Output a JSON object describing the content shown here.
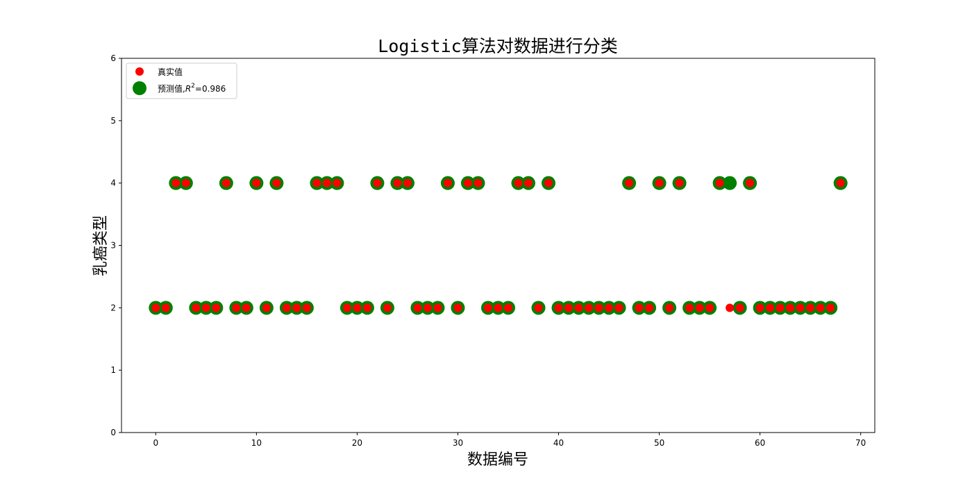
{
  "chart_data": {
    "type": "scatter",
    "title": "Logistic算法对数据进行分类",
    "xlabel": "数据编号",
    "ylabel": "乳癌类型",
    "xlim": [
      -3.4,
      71.4
    ],
    "ylim": [
      0,
      6
    ],
    "xticks": [
      0,
      10,
      20,
      30,
      40,
      50,
      60,
      70
    ],
    "yticks": [
      0,
      1,
      2,
      3,
      4,
      5,
      6
    ],
    "grid": false,
    "legend_position": "top-left",
    "colors": {
      "true": "#ff0000",
      "predicted": "#008000"
    },
    "legend": {
      "true_label": "真实值",
      "pred_label_prefix": "预测值,",
      "pred_r": "R",
      "pred_sup": "2",
      "pred_suffix": "=0.986"
    },
    "series": [
      {
        "name": "真实值",
        "x": [
          0,
          1,
          2,
          3,
          4,
          5,
          6,
          7,
          8,
          9,
          10,
          11,
          12,
          13,
          14,
          15,
          16,
          17,
          18,
          19,
          20,
          21,
          22,
          23,
          24,
          25,
          26,
          27,
          28,
          29,
          30,
          31,
          32,
          33,
          34,
          35,
          36,
          37,
          38,
          39,
          40,
          41,
          42,
          43,
          44,
          45,
          46,
          47,
          48,
          49,
          50,
          51,
          52,
          53,
          54,
          55,
          56,
          57,
          58,
          59,
          60,
          61,
          62,
          63,
          64,
          65,
          66,
          67,
          68
        ],
        "y": [
          2,
          2,
          4,
          4,
          2,
          2,
          2,
          4,
          2,
          2,
          4,
          2,
          4,
          2,
          2,
          2,
          4,
          4,
          4,
          2,
          2,
          2,
          4,
          2,
          4,
          4,
          2,
          2,
          2,
          4,
          2,
          4,
          4,
          2,
          2,
          2,
          4,
          4,
          2,
          4,
          2,
          2,
          2,
          2,
          2,
          2,
          2,
          4,
          2,
          2,
          4,
          2,
          4,
          2,
          2,
          2,
          4,
          2,
          2,
          4,
          2,
          2,
          2,
          2,
          2,
          2,
          2,
          2,
          4
        ]
      },
      {
        "name": "预测值",
        "x": [
          0,
          1,
          2,
          3,
          4,
          5,
          6,
          7,
          8,
          9,
          10,
          11,
          12,
          13,
          14,
          15,
          16,
          17,
          18,
          19,
          20,
          21,
          22,
          23,
          24,
          25,
          26,
          27,
          28,
          29,
          30,
          31,
          32,
          33,
          34,
          35,
          36,
          37,
          38,
          39,
          40,
          41,
          42,
          43,
          44,
          45,
          46,
          47,
          48,
          49,
          50,
          51,
          52,
          53,
          54,
          55,
          56,
          57,
          58,
          59,
          60,
          61,
          62,
          63,
          64,
          65,
          66,
          67,
          68
        ],
        "y": [
          2,
          2,
          4,
          4,
          2,
          2,
          2,
          4,
          2,
          2,
          4,
          2,
          4,
          2,
          2,
          2,
          4,
          4,
          4,
          2,
          2,
          2,
          4,
          2,
          4,
          4,
          2,
          2,
          2,
          4,
          2,
          4,
          4,
          2,
          2,
          2,
          4,
          4,
          2,
          4,
          2,
          2,
          2,
          2,
          2,
          2,
          2,
          4,
          2,
          2,
          4,
          2,
          4,
          2,
          2,
          2,
          4,
          4,
          2,
          4,
          2,
          2,
          2,
          2,
          2,
          2,
          2,
          2,
          4
        ]
      }
    ]
  }
}
